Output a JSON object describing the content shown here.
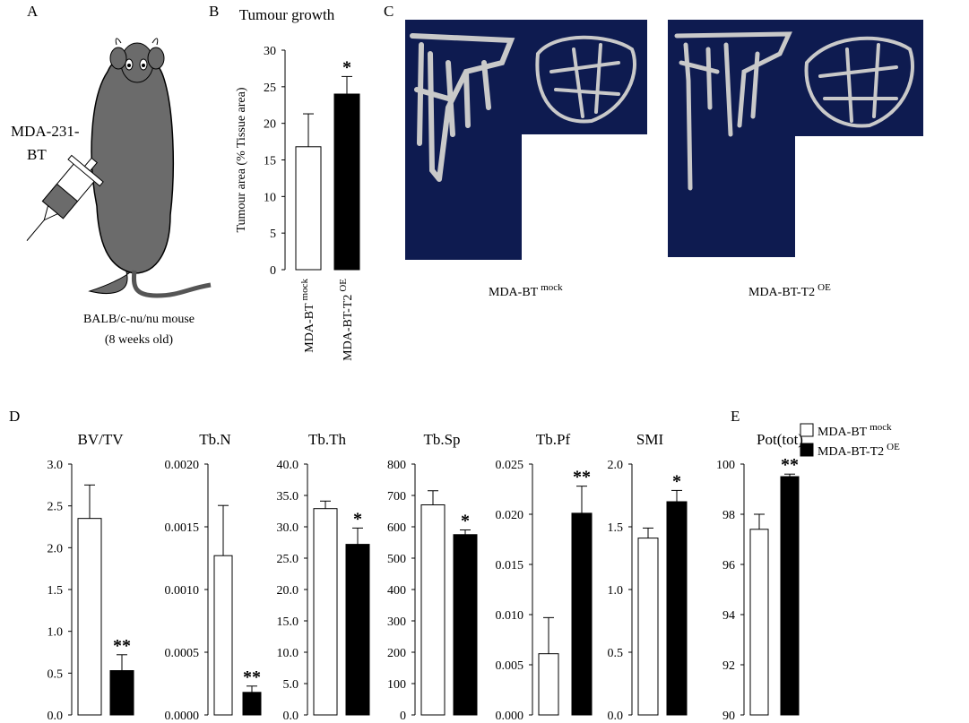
{
  "figure": {
    "panel_labels": [
      "A",
      "B",
      "C",
      "D",
      "E"
    ],
    "injection_label": [
      "MDA-231-",
      "BT"
    ],
    "caption": [
      "BALB/c-nu/nu mouse",
      "(8 weeks old)"
    ],
    "images": [
      [
        "MDA-BT",
        "mock"
      ],
      [
        "MDA-BT-T2",
        "OE"
      ]
    ],
    "legend": [
      {
        "name": [
          "MDA-BT",
          "mock"
        ],
        "color": "#ffffff"
      },
      {
        "name": [
          "MDA-BT-T2",
          "OE"
        ],
        "color": "#000000"
      }
    ]
  },
  "chart_data": [
    {
      "type": "bar",
      "title": "Tumour growth",
      "ylabel": "Tumour area (% Tissue area)",
      "categories": [
        [
          "MDA-BT",
          "mock"
        ],
        [
          "MDA-BT-T2",
          "OE"
        ]
      ],
      "values": [
        16.8,
        24.0
      ],
      "errors": [
        4.5,
        2.4
      ],
      "colors": [
        "#ffffff",
        "#000000"
      ],
      "annotation": "*",
      "ylim": [
        0,
        30
      ],
      "yticks": [
        0,
        5,
        10,
        15,
        20,
        25,
        30
      ]
    },
    {
      "type": "bar",
      "title": "BV/TV",
      "values": [
        2.35,
        0.53
      ],
      "errors": [
        0.4,
        0.19
      ],
      "colors": [
        "#ffffff",
        "#000000"
      ],
      "annotation": "**",
      "ylim": [
        0,
        3.0
      ],
      "yticks": [
        {
          "value": 0,
          "label": "0.0"
        },
        0.5,
        {
          "value": 1,
          "label": "1.0"
        },
        1.5,
        {
          "value": 2,
          "label": "2.0"
        },
        2.5,
        {
          "value": 3,
          "label": "3.0"
        }
      ]
    },
    {
      "type": "bar",
      "title": "Tb.N",
      "values": [
        0.00127,
        0.00018
      ],
      "errors": [
        0.0004,
        5e-05
      ],
      "colors": [
        "#ffffff",
        "#000000"
      ],
      "annotation": "**",
      "ylim": [
        0,
        0.002
      ],
      "yticks": [
        {
          "value": 0,
          "label": "0.0000"
        },
        {
          "value": 0.0005,
          "label": "0.0005"
        },
        {
          "value": 0.001,
          "label": "0.0010"
        },
        {
          "value": 0.0015,
          "label": "0.0015"
        },
        {
          "value": 0.002,
          "label": "0.0020"
        }
      ]
    },
    {
      "type": "bar",
      "title": "Tb.Th",
      "values": [
        32.9,
        27.2
      ],
      "errors": [
        1.2,
        2.6
      ],
      "colors": [
        "#ffffff",
        "#000000"
      ],
      "annotation": "*",
      "ylim": [
        0,
        40
      ],
      "yticks": [
        {
          "value": 0,
          "label": "0.0"
        },
        {
          "value": 5,
          "label": "5.0"
        },
        {
          "value": 10,
          "label": "10.0"
        },
        {
          "value": 15,
          "label": "15.0"
        },
        {
          "value": 20,
          "label": "20.0"
        },
        {
          "value": 25,
          "label": "25.0"
        },
        {
          "value": 30,
          "label": "30.0"
        },
        {
          "value": 35,
          "label": "35.0"
        },
        {
          "value": 40,
          "label": "40.0"
        }
      ]
    },
    {
      "type": "bar",
      "title": "Tb.Sp",
      "values": [
        670,
        575
      ],
      "errors": [
        45,
        15
      ],
      "colors": [
        "#ffffff",
        "#000000"
      ],
      "annotation": "*",
      "ylim": [
        0,
        800
      ],
      "yticks": [
        0,
        100,
        200,
        300,
        400,
        500,
        600,
        700,
        800
      ]
    },
    {
      "type": "bar",
      "title": "Tb.Pf",
      "values": [
        0.0061,
        0.0201
      ],
      "errors": [
        0.0036,
        0.0027
      ],
      "colors": [
        "#ffffff",
        "#000000"
      ],
      "annotation": "**",
      "ylim": [
        0,
        0.025
      ],
      "yticks": [
        {
          "value": 0,
          "label": "0.000"
        },
        0.005,
        {
          "value": 0.01,
          "label": "0.010"
        },
        0.015,
        {
          "value": 0.02,
          "label": "0.020"
        },
        0.025
      ]
    },
    {
      "type": "bar",
      "title": "SMI",
      "values": [
        1.41,
        1.7
      ],
      "errors": [
        0.08,
        0.09
      ],
      "colors": [
        "#ffffff",
        "#000000"
      ],
      "annotation": "*",
      "ylim": [
        0,
        2.0
      ],
      "yticks": [
        {
          "value": 0,
          "label": "0.0"
        },
        0.5,
        {
          "value": 1,
          "label": "1.0"
        },
        1.5,
        {
          "value": 2,
          "label": "2.0"
        }
      ]
    },
    {
      "type": "bar",
      "title": "Pot(tot)",
      "values": [
        97.4,
        99.5
      ],
      "errors": [
        0.6,
        0.1
      ],
      "colors": [
        "#ffffff",
        "#000000"
      ],
      "annotation": "**",
      "ylim": [
        90,
        100
      ],
      "yticks": [
        90,
        92,
        94,
        96,
        98,
        100
      ]
    }
  ]
}
